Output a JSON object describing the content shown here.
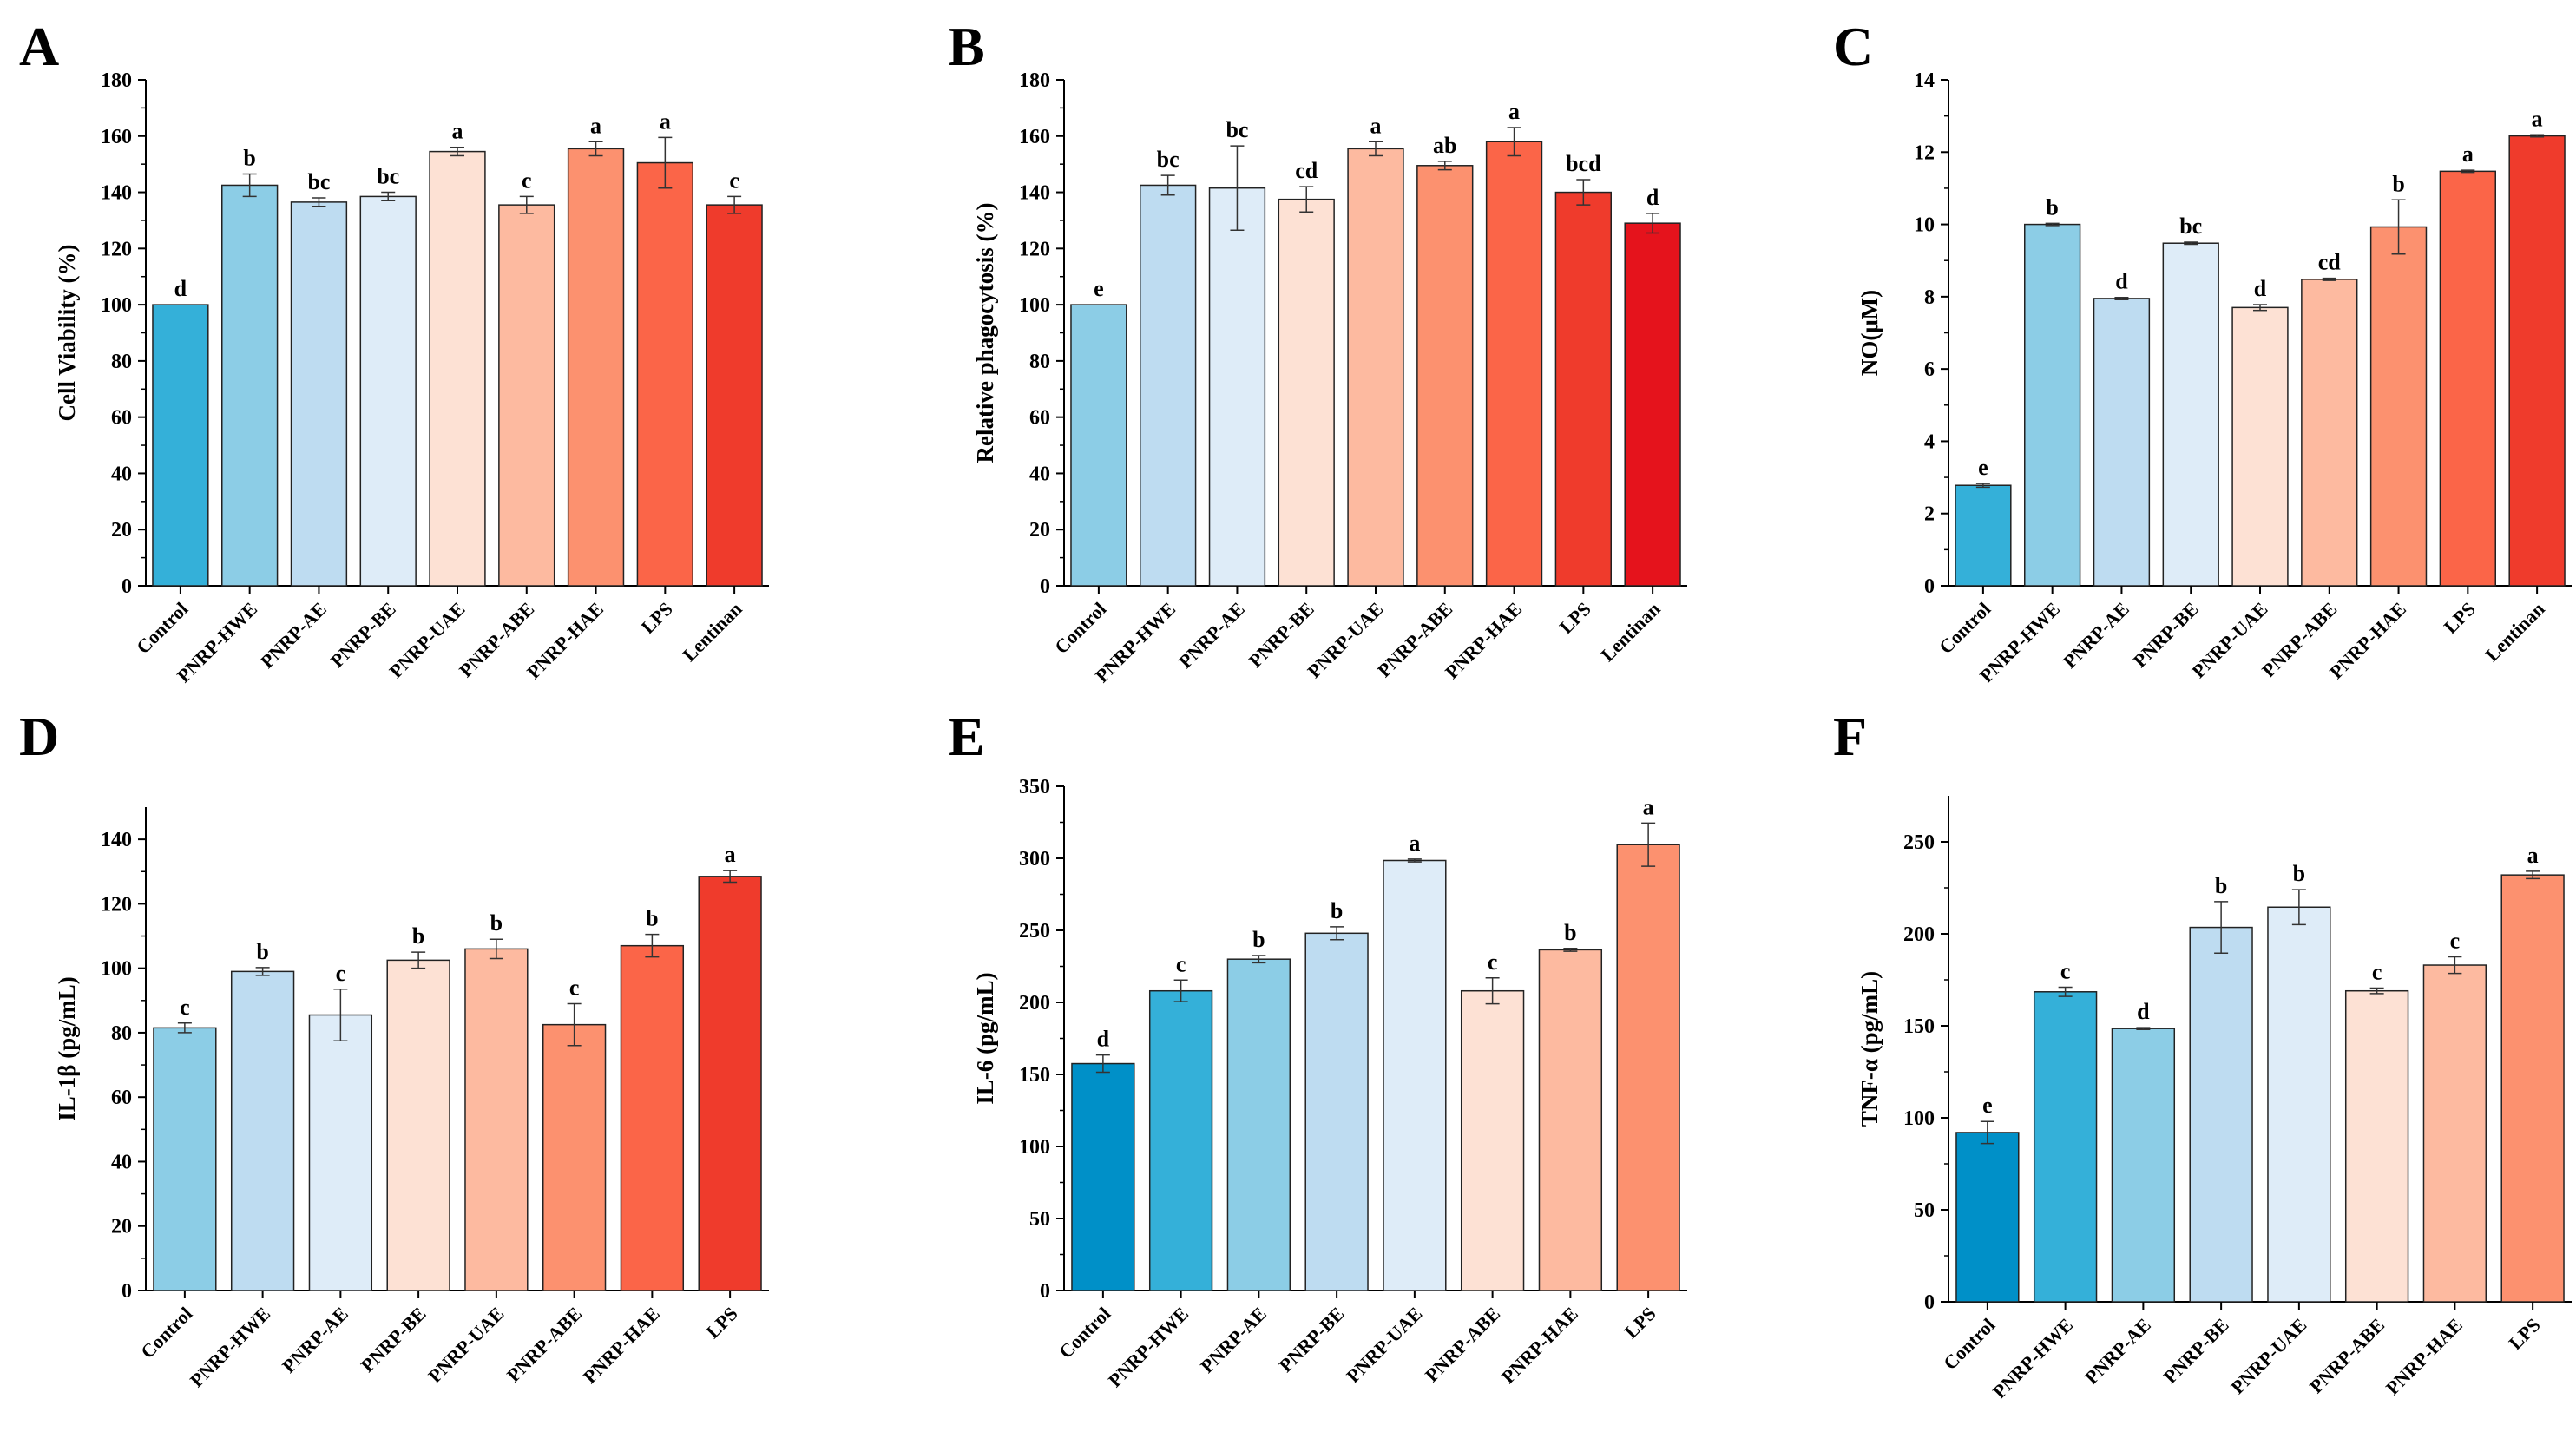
{
  "chart_data": [
    {
      "type": "bar",
      "panel": "A",
      "ylabel": "Cell Viability (%)",
      "ylim": [
        0,
        180
      ],
      "yticks": [
        0,
        20,
        40,
        60,
        80,
        100,
        120,
        140,
        160,
        180
      ],
      "categories": [
        "Control",
        "PNRP-HWE",
        "PNRP-AE",
        "PNRP-BE",
        "PNRP-UAE",
        "PNRP-ABE",
        "PNRP-HAE",
        "LPS",
        "Lentinan"
      ],
      "values": [
        100,
        142.5,
        136.5,
        138.5,
        154.5,
        135.5,
        155.5,
        150.5,
        135.5
      ],
      "errors": [
        0,
        4,
        1.5,
        1.5,
        1.5,
        3,
        2.5,
        9,
        3
      ],
      "letters": [
        "d",
        "b",
        "bc",
        "bc",
        "a",
        "c",
        "a",
        "a",
        "c"
      ],
      "colors": [
        "#34b0d9",
        "#8ccde6",
        "#bedcf1",
        "#deecf8",
        "#fde1d4",
        "#fdbaa0",
        "#fc916f",
        "#fb6548",
        "#ef3b2c"
      ]
    },
    {
      "type": "bar",
      "panel": "B",
      "ylabel": "Relative phagocytosis (%)",
      "ylim": [
        0,
        180
      ],
      "yticks": [
        0,
        20,
        40,
        60,
        80,
        100,
        120,
        140,
        160,
        180
      ],
      "categories": [
        "Control",
        "PNRP-HWE",
        "PNRP-AE",
        "PNRP-BE",
        "PNRP-UAE",
        "PNRP-ABE",
        "PNRP-HAE",
        "LPS",
        "Lentinan"
      ],
      "values": [
        100,
        142.5,
        141.5,
        137.5,
        155.5,
        149.5,
        158,
        140,
        129
      ],
      "errors": [
        0,
        3.5,
        15,
        4.5,
        2.5,
        1.5,
        5,
        4.5,
        3.5
      ],
      "letters": [
        "e",
        "bc",
        "bc",
        "cd",
        "a",
        "ab",
        "a",
        "bcd",
        "d"
      ],
      "colors": [
        "#8ccde6",
        "#bedcf1",
        "#deecf8",
        "#fde1d4",
        "#fdbaa0",
        "#fc916f",
        "#fb6548",
        "#ef3b2c",
        "#e5131c"
      ]
    },
    {
      "type": "bar",
      "panel": "C",
      "ylabel": "NO(μM)",
      "ylim": [
        0,
        14
      ],
      "yticks": [
        0,
        2,
        4,
        6,
        8,
        10,
        12,
        14
      ],
      "categories": [
        "Control",
        "PNRP-HWE",
        "PNRP-AE",
        "PNRP-BE",
        "PNRP-UAE",
        "PNRP-ABE",
        "PNRP-HAE",
        "LPS",
        "Lentinan"
      ],
      "values": [
        2.78,
        10.0,
        7.95,
        9.48,
        7.7,
        8.48,
        9.93,
        11.47,
        12.45
      ],
      "errors": [
        0.05,
        0.03,
        0.03,
        0.03,
        0.08,
        0.03,
        0.75,
        0.03,
        0.03
      ],
      "letters": [
        "e",
        "b",
        "d",
        "bc",
        "d",
        "cd",
        "b",
        "a",
        "a"
      ],
      "colors": [
        "#34b0d9",
        "#8ccde6",
        "#bedcf1",
        "#deecf8",
        "#fde1d4",
        "#fdbaa0",
        "#fc916f",
        "#fb6548",
        "#ef3b2c"
      ]
    },
    {
      "type": "bar",
      "panel": "D",
      "ylabel": "IL-1β (pg/mL)",
      "ylim": [
        0,
        150
      ],
      "yticks": [
        0,
        20,
        40,
        60,
        80,
        100,
        120,
        140
      ],
      "categories": [
        "Control",
        "PNRP-HWE",
        "PNRP-AE",
        "PNRP-BE",
        "PNRP-UAE",
        "PNRP-ABE",
        "PNRP-HAE",
        "LPS"
      ],
      "values": [
        81.5,
        99,
        85.5,
        102.5,
        106,
        82.5,
        107,
        128.5
      ],
      "errors": [
        1.5,
        1.2,
        8,
        2.5,
        3,
        6.5,
        3.5,
        1.8
      ],
      "letters": [
        "c",
        "b",
        "c",
        "b",
        "b",
        "c",
        "b",
        "a"
      ],
      "colors": [
        "#8ccde6",
        "#bedcf1",
        "#deecf8",
        "#fde1d4",
        "#fdbaa0",
        "#fc916f",
        "#fb6548",
        "#ef3b2c"
      ]
    },
    {
      "type": "bar",
      "panel": "E",
      "ylabel": "IL-6 (pg/mL)",
      "ylim": [
        0,
        350
      ],
      "yticks": [
        0,
        50,
        100,
        150,
        200,
        250,
        300,
        350
      ],
      "categories": [
        "Control",
        "PNRP-HWE",
        "PNRP-AE",
        "PNRP-BE",
        "PNRP-UAE",
        "PNRP-ABE",
        "PNRP-HAE",
        "LPS"
      ],
      "values": [
        157.5,
        208,
        230,
        248,
        298.5,
        208,
        236.5,
        309.5
      ],
      "errors": [
        6,
        7.5,
        2.5,
        4.5,
        1,
        9,
        1,
        15
      ],
      "letters": [
        "d",
        "c",
        "b",
        "b",
        "a",
        "c",
        "b",
        "a"
      ],
      "colors": [
        "#0090c8",
        "#34b0d9",
        "#8ccde6",
        "#bedcf1",
        "#deecf8",
        "#fde1d4",
        "#fdbaa0",
        "#fc916f"
      ]
    },
    {
      "type": "bar",
      "panel": "F",
      "ylabel": "TNF-α (pg/mL)",
      "ylim": [
        0,
        275
      ],
      "yticks": [
        0,
        50,
        100,
        150,
        200,
        250
      ],
      "categories": [
        "Control",
        "PNRP-HWE",
        "PNRP-AE",
        "PNRP-BE",
        "PNRP-UAE",
        "PNRP-ABE",
        "PNRP-HAE",
        "LPS"
      ],
      "values": [
        92,
        168.5,
        148.5,
        203.5,
        214.5,
        169,
        183,
        232
      ],
      "errors": [
        6,
        2.5,
        0.5,
        14,
        9.5,
        1.5,
        4.5,
        2
      ],
      "letters": [
        "e",
        "c",
        "d",
        "b",
        "b",
        "c",
        "c",
        "a"
      ],
      "colors": [
        "#0090c8",
        "#34b0d9",
        "#8ccde6",
        "#bedcf1",
        "#deecf8",
        "#fde1d4",
        "#fdbaa0",
        "#fc916f"
      ]
    }
  ]
}
